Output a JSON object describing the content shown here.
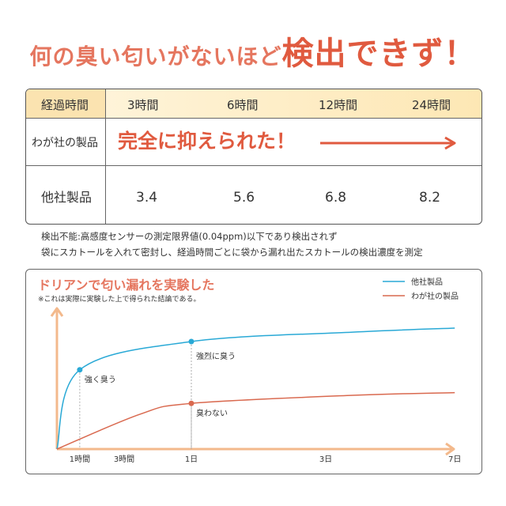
{
  "headline": {
    "part1": "何の臭い匂いがないほど",
    "part2": "検出できず！"
  },
  "table": {
    "header_label": "経過時間",
    "times": [
      "3時間",
      "6時間",
      "12時間",
      "24時間"
    ],
    "ours_label": "わが社の製品",
    "ours_result": "完全に抑えられた！",
    "others_label": "他社製品",
    "others_values": [
      "3.4",
      "5.6",
      "6.8",
      "8.2"
    ]
  },
  "notes": [
    "検出不能:高感度センサーの測定限界値(0.04ppm)以下であり検出されず",
    "袋にスカトールを入れて密封し、経過時間ごとに袋から漏れ出たスカトールの検出濃度を測定"
  ],
  "colors": {
    "accent": "#e05a3f",
    "others_line": "#29a9d6",
    "ours_line": "#d9694f",
    "axis": "#f3b98c"
  },
  "chart_data": {
    "type": "line",
    "title": "ドリアンで匂い漏れを実験した",
    "subtitle": "※これは実際に実験した上で得られた結論である。",
    "x_ticks": [
      "1時間",
      "3時間",
      "1日",
      "3日",
      "7日"
    ],
    "series": [
      {
        "name": "他社製品",
        "values": [
          [
            0,
            0
          ],
          [
            0.17,
            0.59
          ],
          [
            1,
            0.8
          ],
          [
            2.2,
            0.87
          ],
          [
            2.96,
            0.9
          ]
        ]
      },
      {
        "name": "わが社の製品",
        "values": [
          [
            0,
            0
          ],
          [
            0.62,
            0.26
          ],
          [
            1,
            0.34
          ],
          [
            2.2,
            0.4
          ],
          [
            2.96,
            0.42
          ]
        ]
      }
    ],
    "annotations": [
      {
        "series": 0,
        "x": 0.17,
        "y": 0.59,
        "text": "強く臭う"
      },
      {
        "series": 0,
        "x": 1,
        "y": 0.8,
        "text": "強烈に臭う"
      },
      {
        "series": 1,
        "x": 1,
        "y": 0.34,
        "text": "臭わない"
      }
    ]
  }
}
